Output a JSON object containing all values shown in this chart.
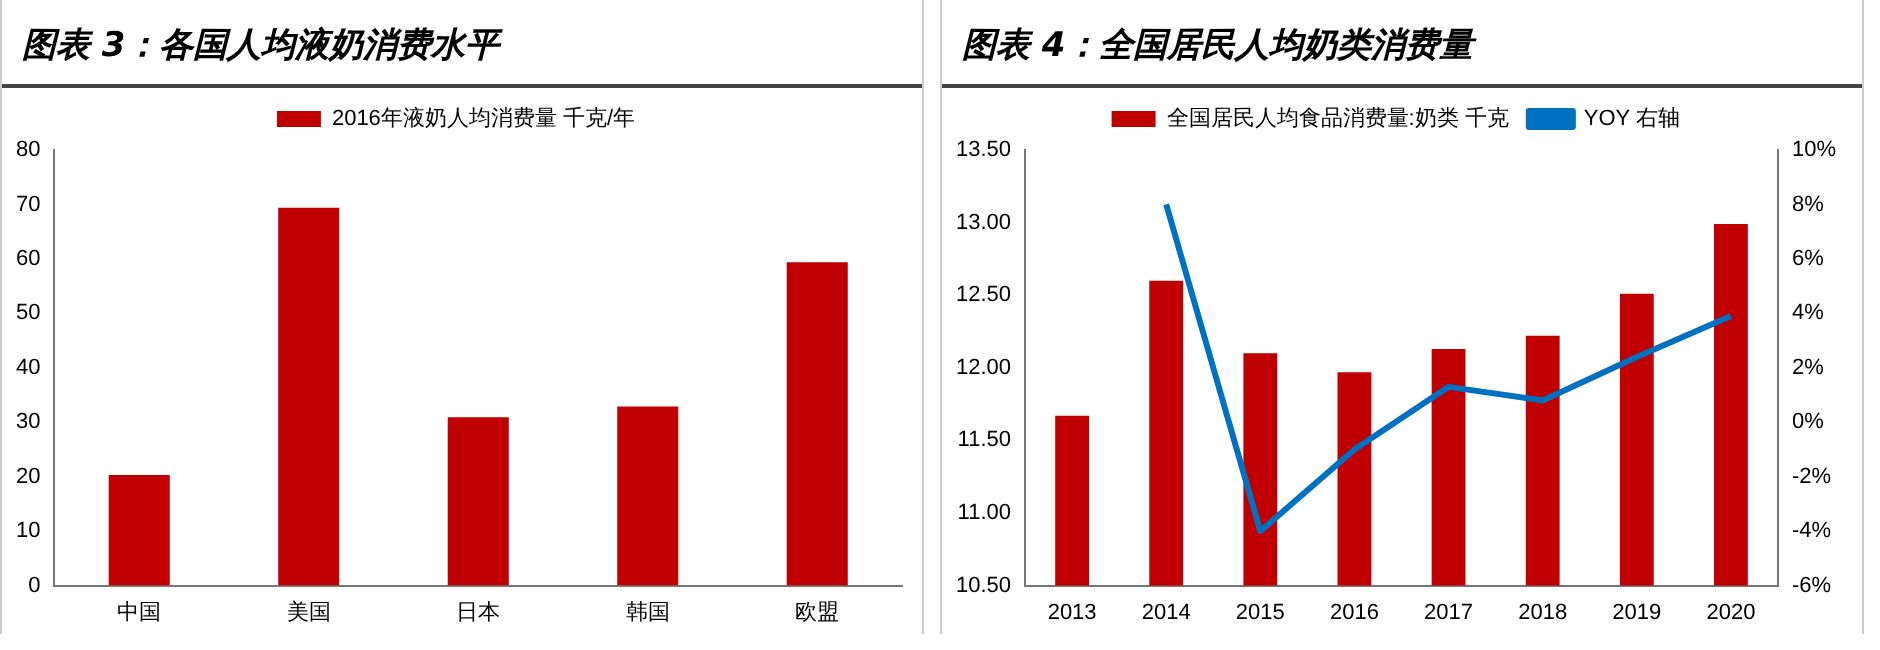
{
  "chart_data": [
    {
      "type": "bar",
      "title": "图表 3：各国人均液奶消费水平",
      "categories": [
        "中国",
        "美国",
        "日本",
        "韩国",
        "欧盟"
      ],
      "series": [
        {
          "name": "2016年液奶人均消费量 千克/年",
          "color": "#c00000",
          "values": [
            20.3,
            69.4,
            30.9,
            32.9,
            59.4
          ]
        }
      ],
      "ylim": [
        0,
        80
      ],
      "yticks": [
        0,
        10,
        20,
        30,
        40,
        50,
        60,
        70,
        80
      ],
      "legend": "top"
    },
    {
      "type": "bar",
      "title": "图表 4：全国居民人均奶类消费量",
      "categories": [
        "2013",
        "2014",
        "2015",
        "2016",
        "2017",
        "2018",
        "2019",
        "2020"
      ],
      "series": [
        {
          "name": "全国居民人均食品消费量:奶类 千克",
          "color": "#c00000",
          "values": [
            11.67,
            12.6,
            12.1,
            11.97,
            12.13,
            12.22,
            12.51,
            12.99
          ]
        },
        {
          "name": "YOY 右轴",
          "type": "line",
          "axis": "y2",
          "color": "#0070c0",
          "values": [
            null,
            8.0,
            -4.0,
            -1.0,
            1.3,
            0.8,
            2.4,
            3.9
          ]
        }
      ],
      "ylim": [
        10.5,
        13.5
      ],
      "yticks": [
        {
          "value": 10.5,
          "label": "10.50"
        },
        {
          "value": 11,
          "label": "11.00"
        },
        {
          "value": 11.5,
          "label": "11.50"
        },
        {
          "value": 12,
          "label": "12.00"
        },
        {
          "value": 12.5,
          "label": "12.50"
        },
        {
          "value": 13,
          "label": "13.00"
        },
        {
          "value": 13.5,
          "label": "13.50"
        }
      ],
      "y2lim": [
        -6,
        10
      ],
      "y2ticks": [
        {
          "value": -6,
          "label": "-6%"
        },
        {
          "value": -4,
          "label": "-4%"
        },
        {
          "value": -2,
          "label": "-2%"
        },
        {
          "value": 0,
          "label": "0%"
        },
        {
          "value": 2,
          "label": "2%"
        },
        {
          "value": 4,
          "label": "4%"
        },
        {
          "value": 6,
          "label": "6%"
        },
        {
          "value": 8,
          "label": "8%"
        },
        {
          "value": 10,
          "label": "10%"
        }
      ],
      "legend": "top"
    }
  ]
}
